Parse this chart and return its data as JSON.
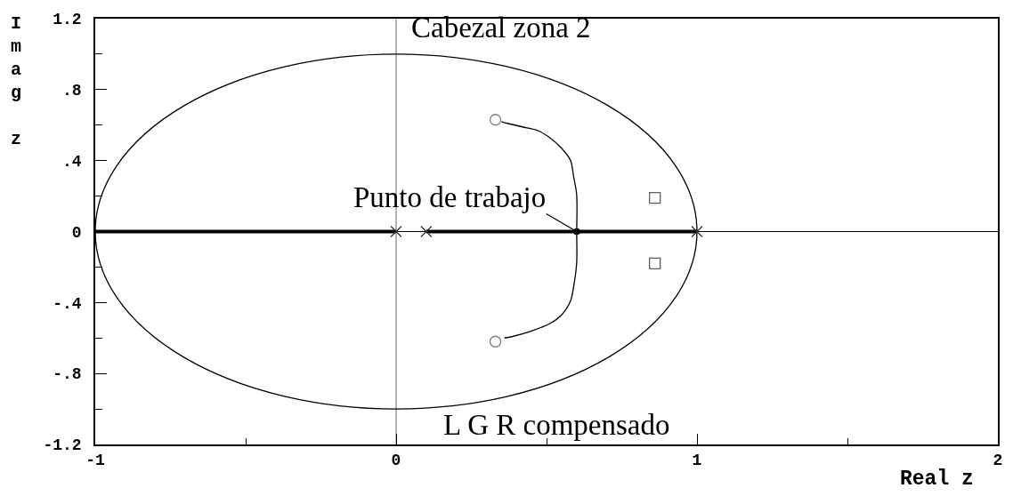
{
  "chart_data": {
    "type": "line",
    "title": "Cabezal zona 2",
    "subtitle": "L G R compensado",
    "xlabel": "Real z",
    "ylabel": "Imag z",
    "annotations": [
      {
        "text": "Punto de trabajo",
        "x": 0.6,
        "y": 0
      }
    ],
    "xlim": [
      -1,
      2
    ],
    "xticks": [
      -1,
      {
        "value": -0.5,
        "label": null
      },
      0,
      {
        "value": 0.5,
        "label": null
      },
      1,
      {
        "value": 1.5,
        "label": null
      },
      2
    ],
    "ylim": [
      -1.2,
      1.2
    ],
    "yticks": [
      -1.2,
      {
        "value": -1,
        "label": null
      },
      {
        "value": -0.8,
        "label": "-.8"
      },
      {
        "value": -0.6,
        "label": null
      },
      {
        "value": -0.4,
        "label": "-.4"
      },
      {
        "value": -0.2,
        "label": null
      },
      0,
      {
        "value": 0.2,
        "label": null
      },
      {
        "value": 0.4,
        "label": ".4"
      },
      {
        "value": 0.6,
        "label": null
      },
      {
        "value": 0.8,
        "label": ".8"
      },
      {
        "value": 1,
        "label": null
      },
      1.2
    ],
    "ref_lines": [
      {
        "axis": "x",
        "value": 0,
        "color": "#7f7f7f"
      },
      {
        "axis": "y",
        "value": 0,
        "color": "#000000"
      }
    ],
    "series": [
      {
        "color": "#000000",
        "x": [
          -1,
          0,
          0.05,
          0.1,
          1
        ],
        "values": [
          0,
          0,
          null,
          0,
          0
        ]
      },
      {
        "color": "#000000",
        "x": [
          0.6,
          0.6,
          0.59,
          0.58,
          0.55,
          0.51,
          0.47,
          0.42,
          0.37,
          0.35
        ],
        "values": [
          0,
          0.21,
          0.31,
          0.4,
          0.47,
          0.53,
          0.57,
          0.59,
          0.61,
          0.62
        ]
      },
      {
        "color": "#000000",
        "x": [
          0.6,
          0.6,
          0.59,
          0.58,
          0.55,
          0.51,
          0.45,
          0.39,
          0.36
        ],
        "values": [
          0,
          -0.18,
          -0.31,
          -0.39,
          -0.47,
          -0.52,
          -0.56,
          -0.59,
          -0.6
        ]
      },
      {
        "type": "scatter",
        "marker": "cross",
        "color": "#303030",
        "x": [
          0,
          0.1,
          1
        ],
        "values": [
          0,
          0,
          0
        ]
      },
      {
        "type": "scatter",
        "marker": "circle",
        "color": "#808080",
        "x": [
          0.33,
          0.33
        ],
        "values": [
          0.63,
          -0.62
        ]
      },
      {
        "type": "scatter",
        "marker": "square",
        "color": "#606060",
        "x": [
          0.86,
          0.86
        ],
        "values": [
          0.19,
          -0.18
        ]
      }
    ]
  }
}
